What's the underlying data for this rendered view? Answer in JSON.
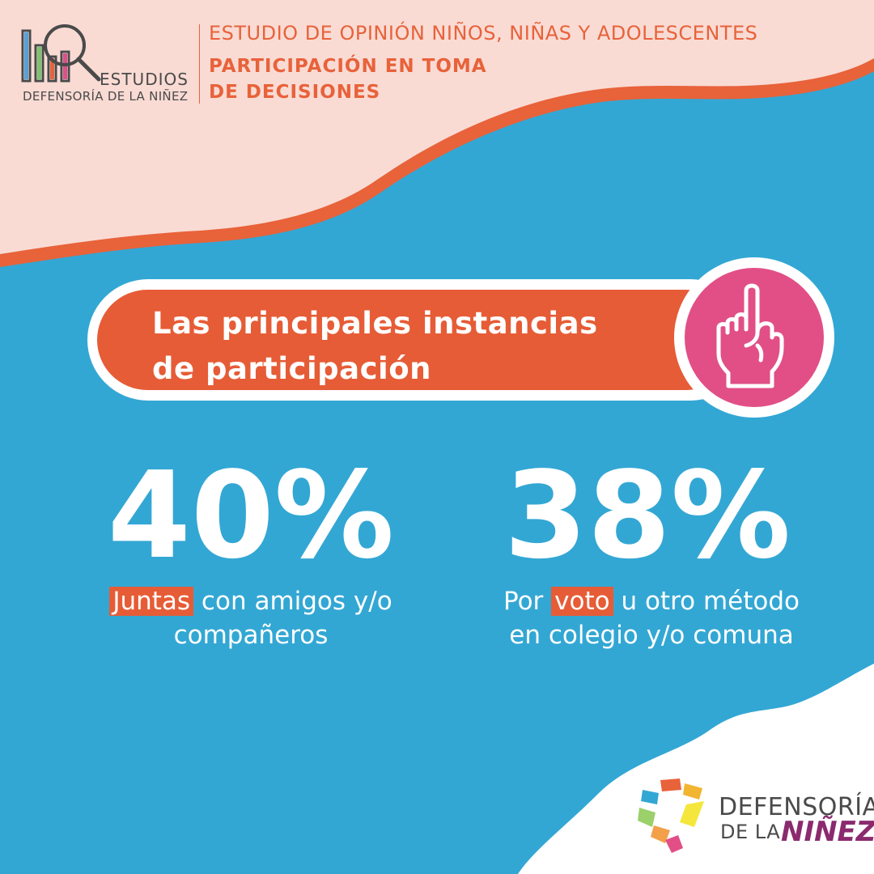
{
  "colors": {
    "background_blue": "#33a7d4",
    "header_peach": "#f9dbd4",
    "accent_orange": "#e65c36",
    "accent_pink": "#e14f86",
    "text_gray": "#4a4a4a",
    "brand_purple": "#8b2a6e"
  },
  "header": {
    "logo": {
      "icon": "bar-chart-magnifier-icon",
      "word": "ESTUDIOS",
      "org": "DEFENSORÍA DE LA NIÑEZ"
    },
    "study_title": "ESTUDIO DE OPINIÓN NIÑOS, NIÑAS Y ADOLESCENTES",
    "topic_line1": "PARTICIPACIÓN EN TOMA",
    "topic_line2": "DE DECISIONES"
  },
  "banner": {
    "line1": "Las principales instancias",
    "line2": "de participación",
    "icon": "raised-finger-hand-icon"
  },
  "stats": [
    {
      "value": "40%",
      "highlight": "Juntas",
      "rest_line1": " con amigos y/o",
      "line2": "compañeros"
    },
    {
      "value": "38%",
      "prefix": "Por ",
      "highlight": "voto",
      "rest_line1": " u otro método",
      "line2": "en colegio y/o comuna"
    }
  ],
  "footer": {
    "icon": "defensoria-colorful-mark-icon",
    "name_line1": "DEFENSORÍA",
    "name_line2a": "DE LA ",
    "name_line2b": "NIÑEZ"
  }
}
